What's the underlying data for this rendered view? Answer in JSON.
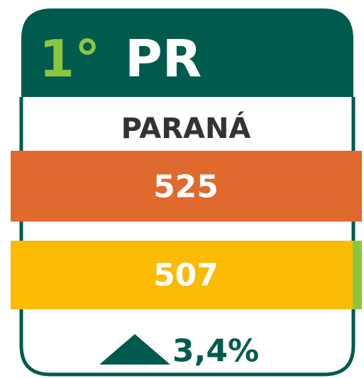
{
  "card": {
    "rank": "1°",
    "code": "PR",
    "name": "PARANÁ",
    "value_top": "525",
    "value_bottom": "507",
    "change": "3,4%"
  }
}
